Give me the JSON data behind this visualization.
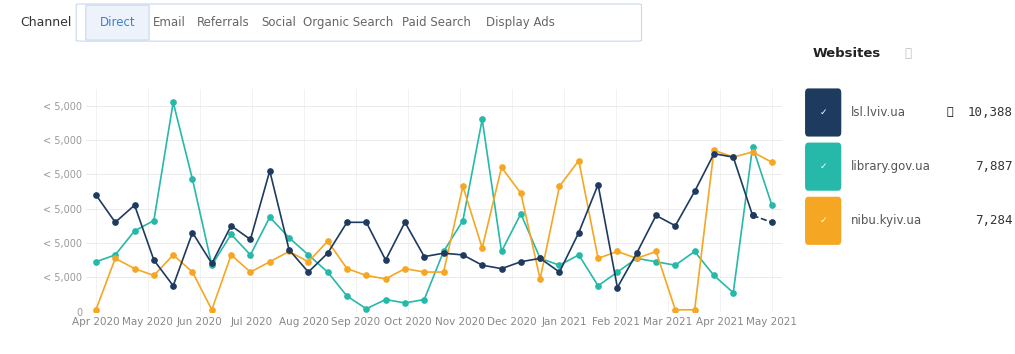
{
  "tabs": [
    "Direct",
    "Email",
    "Referrals",
    "Social",
    "Organic Search",
    "Paid Search",
    "Display Ads"
  ],
  "active_tab": "Direct",
  "x_labels": [
    "Apr 2020",
    "May 2020",
    "Jun 2020",
    "Jul 2020",
    "Aug 2020",
    "Sep 2020",
    "Oct 2020",
    "Nov 2020",
    "Dec 2020",
    "Jan 2021",
    "Feb 2021",
    "Mar 2021",
    "Apr 2021",
    "May 2021"
  ],
  "lsl_lviv": [
    3400,
    2600,
    3100,
    1500,
    750,
    2300,
    1400,
    2500,
    2100,
    4100,
    1800,
    1150,
    1700,
    2600,
    2600,
    1500,
    2600,
    1600,
    1700,
    1650,
    1350,
    1250,
    1450,
    1550,
    1150,
    2300,
    3700,
    700,
    1700,
    2800,
    2500,
    3500,
    4600,
    4500,
    2800,
    2600
  ],
  "library_gov": [
    1450,
    1650,
    2350,
    2650,
    6100,
    3850,
    1350,
    2250,
    1650,
    2750,
    2150,
    1650,
    1150,
    450,
    80,
    350,
    250,
    350,
    1750,
    2650,
    5600,
    1750,
    2850,
    1550,
    1350,
    1650,
    750,
    1150,
    1550,
    1450,
    1350,
    1750,
    1050,
    550,
    4800,
    3100
  ],
  "nibu_kyiv": [
    50,
    1550,
    1250,
    1050,
    1650,
    1150,
    50,
    1650,
    1150,
    1450,
    1750,
    1450,
    2050,
    1250,
    1050,
    950,
    1250,
    1150,
    1150,
    3650,
    1850,
    4200,
    3450,
    950,
    3650,
    4400,
    1550,
    1750,
    1550,
    1750,
    50,
    50,
    4700,
    4500,
    4650,
    4350
  ],
  "color_lsl": "#1e3a5f",
  "color_library": "#26b8a8",
  "color_nibu": "#f5a623",
  "legend_title": "Websites",
  "legend_entries": [
    "lsl.lviv.ua",
    "library.gov.ua",
    "nibu.kyiv.ua"
  ],
  "legend_values": [
    "10,388",
    "7,887",
    "7,284"
  ],
  "ylim": [
    0,
    6500
  ],
  "ytick_labels": [
    "< 5,000",
    "< 5,000",
    "< 5,000",
    "< 5,000",
    "< 5,000",
    "< 5,000"
  ],
  "ytick_vals": [
    1000,
    2000,
    3000,
    4000,
    5000,
    6000
  ],
  "background_color": "#ffffff",
  "grid_color": "#e8e8e8",
  "tab_border_color": "#c8d8ee",
  "tab_bg_color": "#eef3fb",
  "tab_active_color": "#4080cc",
  "tab_inactive_color": "#666666",
  "channel_label_color": "#333333"
}
